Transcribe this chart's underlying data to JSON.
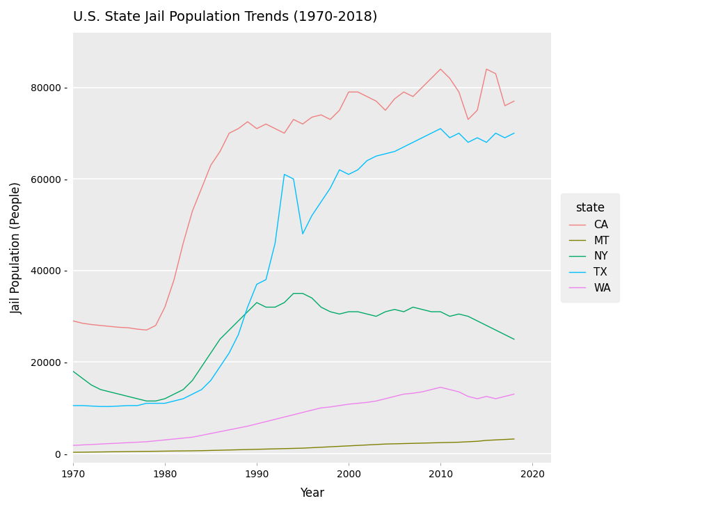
{
  "title": "U.S. State Jail Population Trends (1970-2018)",
  "xlabel": "Year",
  "ylabel": "Jail Population (People)",
  "legend_title": "state",
  "background_color": "#ffffff",
  "panel_background": "#ffffff",
  "legend_bg": "#ebebeb",
  "states": {
    "CA": {
      "color": "#F08080",
      "years": [
        1970,
        1971,
        1972,
        1973,
        1974,
        1975,
        1976,
        1977,
        1978,
        1979,
        1980,
        1981,
        1982,
        1983,
        1984,
        1985,
        1986,
        1987,
        1988,
        1989,
        1990,
        1991,
        1992,
        1993,
        1994,
        1995,
        1996,
        1997,
        1998,
        1999,
        2000,
        2001,
        2002,
        2003,
        2004,
        2005,
        2006,
        2007,
        2008,
        2009,
        2010,
        2011,
        2012,
        2013,
        2014,
        2015,
        2016,
        2017,
        2018
      ],
      "values": [
        29000,
        28500,
        28200,
        28000,
        27800,
        27600,
        27500,
        27200,
        27000,
        28000,
        32000,
        38000,
        46000,
        53000,
        58000,
        63000,
        66000,
        70000,
        71000,
        72500,
        71000,
        72000,
        71000,
        70000,
        73000,
        72000,
        73500,
        74000,
        73000,
        75000,
        79000,
        79000,
        78000,
        77000,
        75000,
        77500,
        79000,
        78000,
        80000,
        82000,
        84000,
        82000,
        79000,
        73000,
        75000,
        84000,
        83000,
        76000,
        77000
      ]
    },
    "MT": {
      "color": "#808000",
      "years": [
        1970,
        1971,
        1972,
        1973,
        1974,
        1975,
        1976,
        1977,
        1978,
        1979,
        1980,
        1981,
        1982,
        1983,
        1984,
        1985,
        1986,
        1987,
        1988,
        1989,
        1990,
        1991,
        1992,
        1993,
        1994,
        1995,
        1996,
        1997,
        1998,
        1999,
        2000,
        2001,
        2002,
        2003,
        2004,
        2005,
        2006,
        2007,
        2008,
        2009,
        2010,
        2011,
        2012,
        2013,
        2014,
        2015,
        2016,
        2017,
        2018
      ],
      "values": [
        300,
        320,
        350,
        370,
        400,
        420,
        450,
        480,
        500,
        520,
        550,
        580,
        600,
        620,
        650,
        700,
        750,
        800,
        850,
        900,
        950,
        1000,
        1050,
        1100,
        1150,
        1200,
        1300,
        1400,
        1500,
        1600,
        1700,
        1800,
        1900,
        2000,
        2100,
        2150,
        2200,
        2250,
        2300,
        2350,
        2400,
        2450,
        2500,
        2600,
        2700,
        2900,
        3000,
        3100,
        3200
      ]
    },
    "NY": {
      "color": "#00AA66",
      "years": [
        1970,
        1971,
        1972,
        1973,
        1974,
        1975,
        1976,
        1977,
        1978,
        1979,
        1980,
        1981,
        1982,
        1983,
        1984,
        1985,
        1986,
        1987,
        1988,
        1989,
        1990,
        1991,
        1992,
        1993,
        1994,
        1995,
        1996,
        1997,
        1998,
        1999,
        2000,
        2001,
        2002,
        2003,
        2004,
        2005,
        2006,
        2007,
        2008,
        2009,
        2010,
        2011,
        2012,
        2013,
        2014,
        2015,
        2016,
        2017,
        2018
      ],
      "values": [
        18000,
        16500,
        15000,
        14000,
        13500,
        13000,
        12500,
        12000,
        11500,
        11500,
        12000,
        13000,
        14000,
        16000,
        19000,
        22000,
        25000,
        27000,
        29000,
        31000,
        33000,
        32000,
        32000,
        33000,
        35000,
        35000,
        34000,
        32000,
        31000,
        30500,
        31000,
        31000,
        30500,
        30000,
        31000,
        31500,
        31000,
        32000,
        31500,
        31000,
        31000,
        30000,
        30500,
        30000,
        29000,
        28000,
        27000,
        26000,
        25000
      ]
    },
    "TX": {
      "color": "#00BFFF",
      "years": [
        1970,
        1971,
        1972,
        1973,
        1974,
        1975,
        1976,
        1977,
        1978,
        1979,
        1980,
        1981,
        1982,
        1983,
        1984,
        1985,
        1986,
        1987,
        1988,
        1989,
        1990,
        1991,
        1992,
        1993,
        1994,
        1995,
        1996,
        1997,
        1998,
        1999,
        2000,
        2001,
        2002,
        2003,
        2004,
        2005,
        2006,
        2007,
        2008,
        2009,
        2010,
        2011,
        2012,
        2013,
        2014,
        2015,
        2016,
        2017,
        2018
      ],
      "values": [
        10500,
        10500,
        10400,
        10300,
        10300,
        10400,
        10500,
        10500,
        11000,
        11000,
        11000,
        11500,
        12000,
        13000,
        14000,
        16000,
        19000,
        22000,
        26000,
        32000,
        37000,
        38000,
        46000,
        61000,
        60000,
        48000,
        52000,
        55000,
        58000,
        62000,
        61000,
        62000,
        64000,
        65000,
        65500,
        66000,
        67000,
        68000,
        69000,
        70000,
        71000,
        69000,
        70000,
        68000,
        69000,
        68000,
        70000,
        69000,
        70000
      ]
    },
    "WA": {
      "color": "#EE82EE",
      "years": [
        1970,
        1971,
        1972,
        1973,
        1974,
        1975,
        1976,
        1977,
        1978,
        1979,
        1980,
        1981,
        1982,
        1983,
        1984,
        1985,
        1986,
        1987,
        1988,
        1989,
        1990,
        1991,
        1992,
        1993,
        1994,
        1995,
        1996,
        1997,
        1998,
        1999,
        2000,
        2001,
        2002,
        2003,
        2004,
        2005,
        2006,
        2007,
        2008,
        2009,
        2010,
        2011,
        2012,
        2013,
        2014,
        2015,
        2016,
        2017,
        2018
      ],
      "values": [
        1800,
        1900,
        2000,
        2100,
        2200,
        2300,
        2400,
        2500,
        2600,
        2800,
        3000,
        3200,
        3400,
        3600,
        4000,
        4400,
        4800,
        5200,
        5600,
        6000,
        6500,
        7000,
        7500,
        8000,
        8500,
        9000,
        9500,
        10000,
        10200,
        10500,
        10800,
        11000,
        11200,
        11500,
        12000,
        12500,
        13000,
        13200,
        13500,
        14000,
        14500,
        14000,
        13500,
        12500,
        12000,
        12500,
        12000,
        12500,
        13000
      ]
    }
  },
  "xlim": [
    1970,
    2022
  ],
  "ylim": [
    -2000,
    92000
  ],
  "yticks": [
    0,
    20000,
    40000,
    60000,
    80000
  ],
  "xticks": [
    1970,
    1980,
    1990,
    2000,
    2010,
    2020
  ]
}
